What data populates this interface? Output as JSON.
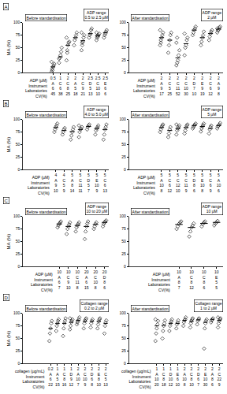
{
  "chart_data": [
    {
      "type": "scatter",
      "panel_label": "A",
      "title": [
        "ADP range",
        "0.5 to 2.5 µM"
      ],
      "subtitle": "Before standardisation",
      "ylabel": "MA (%)",
      "ylim": [
        0,
        100
      ],
      "yticks": [
        0,
        25,
        50,
        75,
        100
      ],
      "grid": false,
      "color": "#000000",
      "marker": "diamond-open",
      "row_labels": [
        "ADP (µM)",
        "Instrument",
        "Laboratories",
        "CV(%)"
      ],
      "groups": [
        {
          "table": [
            0.5,
            "A",
            6,
            45
          ],
          "values": [
            2,
            8,
            12,
            15,
            18,
            22,
            5
          ],
          "median": 12
        },
        {
          "table": [
            1,
            "C",
            6,
            38
          ],
          "values": [
            20,
            30,
            35,
            42,
            50,
            28
          ],
          "median": 32
        },
        {
          "table": [
            2,
            "C",
            8,
            25
          ],
          "values": [
            25,
            40,
            55,
            60,
            62,
            70,
            45
          ],
          "median": 55
        },
        {
          "table": [
            2,
            "A",
            5,
            18
          ],
          "values": [
            55,
            65,
            70,
            75,
            80
          ],
          "median": 70
        },
        {
          "table": [
            2,
            "C",
            9,
            21
          ],
          "values": [
            45,
            55,
            62,
            70,
            75,
            80,
            60
          ],
          "median": 64
        },
        {
          "table": [
            2.5,
            "D",
            5,
            13
          ],
          "values": [
            70,
            75,
            78,
            85,
            88
          ],
          "median": 78
        },
        {
          "table": [
            2.5,
            "C",
            10,
            10
          ],
          "values": [
            65,
            70,
            72,
            75,
            78,
            80,
            74
          ],
          "median": 74
        },
        {
          "table": [
            2.5,
            "E",
            6,
            6
          ],
          "values": [
            70,
            75,
            78,
            82,
            85
          ],
          "median": 80
        }
      ]
    },
    {
      "type": "scatter",
      "title": [
        "ADP range",
        "2 µM"
      ],
      "subtitle": "After standardisation",
      "ylim": [
        0,
        100
      ],
      "yticks": [
        0,
        25,
        50,
        75,
        100
      ],
      "grid": false,
      "color": "#000000",
      "marker": "diamond-open",
      "row_labels": [
        "ADP (µM)",
        "Instrument",
        "Laboratories",
        "CV(%)"
      ],
      "groups": [
        {
          "table": [
            2,
            "A",
            9,
            17
          ],
          "values": [
            55,
            65,
            70,
            75,
            80,
            85,
            60
          ],
          "median": 70
        },
        {
          "table": [
            2,
            "C",
            5,
            25
          ],
          "values": [
            40,
            55,
            65,
            75,
            80
          ],
          "median": 65
        },
        {
          "table": [
            2,
            "C",
            11,
            52
          ],
          "values": [
            15,
            20,
            25,
            35,
            45,
            60,
            70
          ],
          "median": 30
        },
        {
          "table": [
            2,
            "C",
            10,
            30
          ],
          "values": [
            35,
            50,
            55,
            65,
            70,
            78
          ],
          "median": 58
        },
        {
          "table": [
            2,
            "D",
            7,
            10
          ],
          "values": [
            75,
            80,
            85,
            88,
            92
          ],
          "median": 85
        },
        {
          "table": [
            2,
            "E",
            9,
            19
          ],
          "values": [
            55,
            62,
            70,
            75,
            82
          ],
          "median": 70
        },
        {
          "table": [
            2,
            "C",
            6,
            12
          ],
          "values": [
            65,
            72,
            78,
            82,
            85
          ],
          "median": 78
        },
        {
          "table": [
            2,
            "A",
            9,
            8
          ],
          "values": [
            80,
            84,
            86,
            90,
            92,
            88
          ],
          "median": 87
        }
      ]
    },
    {
      "type": "scatter",
      "panel_label": "B",
      "title": [
        "ADP range",
        "4.0 to 5.0 µM"
      ],
      "subtitle": "Before standardisation",
      "ylabel": "MA (%)",
      "ylim": [
        0,
        100
      ],
      "yticks": [
        0,
        25,
        50,
        75,
        100
      ],
      "grid": false,
      "color": "#000000",
      "marker": "diamond-open",
      "row_labels": [
        "ADP (µM)",
        "Instrument",
        "Laboratories",
        "CV(%)"
      ],
      "groups": [
        {
          "table": [
            4,
            "A",
            9,
            10
          ],
          "values": [
            75,
            80,
            85,
            88,
            92
          ],
          "median": 84
        },
        {
          "table": [
            4,
            "C",
            5,
            9
          ],
          "values": [
            70,
            75,
            80,
            83
          ],
          "median": 78
        },
        {
          "table": [
            5,
            "A",
            8,
            14
          ],
          "values": [
            60,
            68,
            75,
            80,
            85
          ],
          "median": 76
        },
        {
          "table": [
            5,
            "C",
            11,
            11
          ],
          "values": [
            65,
            75,
            80,
            82,
            85,
            88
          ],
          "median": 80
        },
        {
          "table": [
            5,
            "D",
            5,
            7
          ],
          "values": [
            80,
            85,
            88,
            90
          ],
          "median": 86
        },
        {
          "table": [
            5,
            "E",
            10,
            9
          ],
          "values": [
            70,
            78,
            82,
            85,
            88
          ],
          "median": 82
        },
        {
          "table": [
            5,
            "C",
            6,
            13
          ],
          "values": [
            60,
            70,
            80,
            85,
            90
          ],
          "median": 80
        }
      ]
    },
    {
      "type": "scatter",
      "title": [
        "ADP range",
        "5 µM"
      ],
      "subtitle": "After standardisation",
      "ylim": [
        0,
        100
      ],
      "yticks": [
        0,
        25,
        50,
        75,
        100
      ],
      "grid": false,
      "color": "#000000",
      "marker": "diamond-open",
      "row_labels": [
        "ADP (µM)",
        "Instrument",
        "Laboratories",
        "CV(%)"
      ],
      "groups": [
        {
          "table": [
            5,
            "A",
            10,
            8
          ],
          "values": [
            75,
            80,
            85,
            88,
            90
          ],
          "median": 84
        },
        {
          "table": [
            5,
            "C",
            6,
            12
          ],
          "values": [
            65,
            72,
            80,
            85
          ],
          "median": 78
        },
        {
          "table": [
            5,
            "C",
            12,
            10
          ],
          "values": [
            70,
            78,
            82,
            85,
            88,
            90
          ],
          "median": 82
        },
        {
          "table": [
            5,
            "C",
            11,
            9
          ],
          "values": [
            72,
            78,
            84,
            88,
            90
          ],
          "median": 84
        },
        {
          "table": [
            5,
            "D",
            8,
            6
          ],
          "values": [
            82,
            85,
            88,
            90,
            92
          ],
          "median": 88
        },
        {
          "table": [
            5,
            "E",
            10,
            8
          ],
          "values": [
            76,
            82,
            86,
            89,
            92
          ],
          "median": 86
        },
        {
          "table": [
            5,
            "C",
            6,
            9
          ],
          "values": [
            72,
            80,
            85,
            88
          ],
          "median": 82
        },
        {
          "table": [
            5,
            "A",
            10,
            6
          ],
          "values": [
            82,
            86,
            88,
            90,
            93
          ],
          "median": 88
        }
      ]
    },
    {
      "type": "scatter",
      "panel_label": "C",
      "title": [
        "ADP range",
        "10 to 20 µM"
      ],
      "subtitle": "Before standardisation",
      "ylabel": "MA (%)",
      "ylim": [
        0,
        100
      ],
      "yticks": [
        0,
        25,
        50,
        75,
        100
      ],
      "grid": false,
      "color": "#000000",
      "marker": "diamond-open",
      "row_labels": [
        "ADP (µM)",
        "Instrument",
        "Laboratories",
        "CV(%)"
      ],
      "groups": [
        {
          "table": [
            10,
            "A",
            6,
            7
          ],
          "values": [
            78,
            82,
            85,
            88,
            90
          ],
          "median": 85
        },
        {
          "table": [
            10,
            "C",
            9,
            10
          ],
          "values": [
            65,
            75,
            80,
            84,
            88
          ],
          "median": 80
        },
        {
          "table": [
            10,
            "C",
            11,
            8
          ],
          "values": [
            70,
            78,
            82,
            85,
            88
          ],
          "median": 82
        },
        {
          "table": [
            20,
            "A",
            6,
            15
          ],
          "values": [
            55,
            70,
            80,
            86,
            90
          ],
          "median": 80
        },
        {
          "table": [
            20,
            "C",
            10,
            8
          ],
          "values": [
            75,
            80,
            85,
            88
          ],
          "median": 84
        },
        {
          "table": [
            20,
            "D",
            8,
            6
          ],
          "values": [
            80,
            85,
            88,
            90,
            92
          ],
          "median": 88
        }
      ]
    },
    {
      "type": "scatter",
      "title": [
        "ADP range",
        "10 µM"
      ],
      "subtitle": "After standardisation",
      "ylim": [
        0,
        100
      ],
      "yticks": [
        0,
        25,
        50,
        75,
        100
      ],
      "grid": false,
      "color": "#000000",
      "marker": "diamond-open",
      "row_labels": [
        "ADP (µM)",
        "Instrument",
        "Laboratories",
        "CV(%)"
      ],
      "groups": [
        {
          "table": [
            10,
            "A",
            8,
            7
          ],
          "values": [
            75,
            80,
            85,
            88,
            90
          ],
          "median": 84
        },
        {
          "table": [
            10,
            "C",
            8,
            12
          ],
          "values": [
            60,
            70,
            78,
            82,
            86
          ],
          "median": 78
        },
        {
          "table": [
            10,
            "C",
            8,
            6
          ],
          "values": [
            80,
            85,
            88,
            90
          ],
          "median": 86
        },
        {
          "table": [
            10,
            "E",
            5,
            5
          ],
          "values": [
            82,
            86,
            88,
            91
          ],
          "median": 88
        }
      ]
    },
    {
      "type": "scatter",
      "panel_label": "D",
      "title": [
        "Collagen range",
        "0.2 to 2 µM"
      ],
      "subtitle": "Before standardisation",
      "ylabel": "MA (%)",
      "ylim": [
        0,
        100
      ],
      "yticks": [
        0,
        25,
        50,
        75,
        100
      ],
      "grid": false,
      "color": "#000000",
      "marker": "diamond-open",
      "row_labels": [
        "collagen (µg/mL)",
        "Instrument",
        "Laboratories",
        "CV(%)"
      ],
      "groups": [
        {
          "table": [
            0.2,
            "A",
            6,
            22
          ],
          "values": [
            45,
            60,
            70,
            80,
            85
          ],
          "median": 70
        },
        {
          "table": [
            1,
            "A",
            5,
            15
          ],
          "values": [
            65,
            75,
            80,
            85,
            88
          ],
          "median": 80
        },
        {
          "table": [
            1,
            "C",
            8,
            16
          ],
          "values": [
            55,
            70,
            80,
            85,
            90
          ],
          "median": 80
        },
        {
          "table": [
            1,
            "D",
            9,
            12
          ],
          "values": [
            68,
            75,
            82,
            85,
            88,
            90
          ],
          "median": 82
        },
        {
          "table": [
            2,
            "A",
            10,
            7
          ],
          "values": [
            78,
            82,
            85,
            88,
            92
          ],
          "median": 86
        },
        {
          "table": [
            2,
            "C",
            10,
            9
          ],
          "values": [
            70,
            80,
            85,
            88,
            90
          ],
          "median": 84
        },
        {
          "table": [
            2,
            "D",
            6,
            8
          ],
          "values": [
            72,
            80,
            85,
            88
          ],
          "median": 84
        },
        {
          "table": [
            2,
            "E",
            8,
            10
          ],
          "values": [
            70,
            78,
            84,
            88,
            90
          ],
          "median": 84
        },
        {
          "table": [
            2,
            "C",
            5,
            13
          ],
          "values": [
            60,
            75,
            82,
            86
          ],
          "median": 80
        }
      ]
    },
    {
      "type": "scatter",
      "title": [
        "Collagen range",
        "1 to 2 µM"
      ],
      "subtitle": "After standardisation",
      "ylim": [
        0,
        100
      ],
      "yticks": [
        0,
        25,
        50,
        75,
        100
      ],
      "grid": false,
      "color": "#000000",
      "marker": "diamond-open",
      "row_labels": [
        "collagen (µg/mL)",
        "Instrument",
        "Laboratories",
        "CV(%)"
      ],
      "groups": [
        {
          "table": [
            1,
            "A",
            10,
            20
          ],
          "values": [
            45,
            60,
            70,
            78,
            85,
            88
          ],
          "median": 75
        },
        {
          "table": [
            1,
            "C",
            8,
            18
          ],
          "values": [
            50,
            65,
            75,
            80,
            86
          ],
          "median": 76
        },
        {
          "table": [
            1,
            "D",
            10,
            12
          ],
          "values": [
            65,
            75,
            80,
            84,
            88
          ],
          "median": 80
        },
        {
          "table": [
            1,
            "E",
            6,
            10
          ],
          "values": [
            70,
            78,
            82,
            86
          ],
          "median": 80
        },
        {
          "table": [
            2,
            "A",
            10,
            8
          ],
          "values": [
            75,
            82,
            86,
            88,
            92
          ],
          "median": 86
        },
        {
          "table": [
            2,
            "C",
            8,
            10
          ],
          "values": [
            72,
            80,
            85,
            88,
            90
          ],
          "median": 84
        },
        {
          "table": [
            2,
            "D",
            6,
            7
          ],
          "values": [
            78,
            85,
            88,
            90
          ],
          "median": 87
        },
        {
          "table": [
            2,
            "E",
            10,
            30
          ],
          "values": [
            30,
            70,
            80,
            85,
            88
          ],
          "median": 82
        },
        {
          "table": [
            2,
            "A",
            8,
            6
          ],
          "values": [
            82,
            86,
            88,
            90
          ],
          "median": 88
        },
        {
          "table": [
            2,
            "C",
            22,
            9
          ],
          "values": [
            72,
            80,
            85,
            88,
            90,
            92
          ],
          "median": 86
        }
      ]
    }
  ]
}
